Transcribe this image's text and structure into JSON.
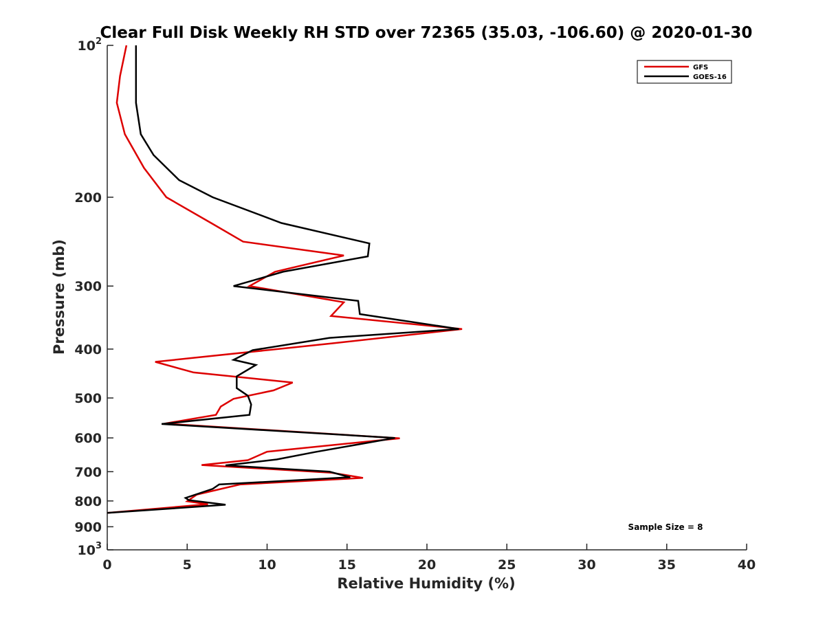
{
  "chart_data": {
    "type": "line",
    "title": "Clear Full Disk Weekly RH STD over 72365 (35.03, -106.60) @ 2020-01-30",
    "xlabel": "Relative Humidity (%)",
    "ylabel": "Pressure (mb)",
    "xlim": [
      0,
      40
    ],
    "ylim": [
      100,
      1000
    ],
    "yscale": "log",
    "y_reversed": true,
    "grid": false,
    "x_ticks": [
      0,
      5,
      10,
      15,
      20,
      25,
      30,
      35,
      40
    ],
    "x_tick_labels": [
      "0",
      "5",
      "10",
      "15",
      "20",
      "25",
      "30",
      "35",
      "40"
    ],
    "y_ticks": [
      100,
      200,
      300,
      400,
      500,
      600,
      700,
      800,
      900,
      1000
    ],
    "y_tick_labels": [
      {
        "base": "10",
        "exp": "2"
      },
      {
        "base": "200",
        "exp": ""
      },
      {
        "base": "300",
        "exp": ""
      },
      {
        "base": "400",
        "exp": ""
      },
      {
        "base": "500",
        "exp": ""
      },
      {
        "base": "600",
        "exp": ""
      },
      {
        "base": "700",
        "exp": ""
      },
      {
        "base": "800",
        "exp": ""
      },
      {
        "base": "900",
        "exp": ""
      },
      {
        "base": "10",
        "exp": "3"
      }
    ],
    "legend_position": "top-right",
    "annotation": "Sample Size = 8",
    "series": [
      {
        "name": "GFS",
        "color": "#dd0000",
        "points": [
          [
            1.2,
            100
          ],
          [
            0.8,
            115
          ],
          [
            0.6,
            130
          ],
          [
            1.1,
            150
          ],
          [
            2.3,
            175
          ],
          [
            3.7,
            200
          ],
          [
            6.5,
            225
          ],
          [
            8.5,
            245
          ],
          [
            14.8,
            261
          ],
          [
            10.5,
            281
          ],
          [
            8.9,
            300
          ],
          [
            14.8,
            323
          ],
          [
            14.0,
            344
          ],
          [
            22.2,
            365
          ],
          [
            14.0,
            390
          ],
          [
            3.0,
            424
          ],
          [
            5.4,
            445
          ],
          [
            11.6,
            466
          ],
          [
            10.4,
            483
          ],
          [
            7.9,
            502
          ],
          [
            7.1,
            520
          ],
          [
            6.8,
            540
          ],
          [
            3.6,
            562
          ],
          [
            18.3,
            601
          ],
          [
            10.0,
            639
          ],
          [
            8.8,
            664
          ],
          [
            5.9,
            679
          ],
          [
            14.0,
            703
          ],
          [
            16.0,
            720
          ],
          [
            8.3,
            742
          ],
          [
            5.6,
            777
          ],
          [
            5.0,
            801
          ],
          [
            6.3,
            812
          ],
          [
            0.0,
            845
          ]
        ]
      },
      {
        "name": "GOES-16",
        "color": "#000000",
        "points": [
          [
            1.8,
            100
          ],
          [
            1.8,
            115
          ],
          [
            1.8,
            130
          ],
          [
            2.1,
            150
          ],
          [
            2.9,
            165
          ],
          [
            4.5,
            185
          ],
          [
            6.6,
            200
          ],
          [
            10.9,
            225
          ],
          [
            16.4,
            247
          ],
          [
            16.3,
            262
          ],
          [
            11.0,
            281
          ],
          [
            7.9,
            300
          ],
          [
            15.7,
            321
          ],
          [
            15.8,
            341
          ],
          [
            22.0,
            365
          ],
          [
            13.9,
            380
          ],
          [
            9.1,
            402
          ],
          [
            7.9,
            420
          ],
          [
            9.3,
            430
          ],
          [
            8.1,
            453
          ],
          [
            8.1,
            478
          ],
          [
            8.8,
            495
          ],
          [
            9.0,
            515
          ],
          [
            8.9,
            540
          ],
          [
            3.4,
            563
          ],
          [
            18.0,
            600
          ],
          [
            16.1,
            615
          ],
          [
            13.0,
            640
          ],
          [
            10.6,
            662
          ],
          [
            7.4,
            680
          ],
          [
            13.9,
            700
          ],
          [
            15.2,
            718
          ],
          [
            7.0,
            742
          ],
          [
            6.6,
            757
          ],
          [
            4.9,
            789
          ],
          [
            5.1,
            797
          ],
          [
            7.4,
            814
          ],
          [
            0.0,
            845
          ]
        ]
      }
    ]
  }
}
